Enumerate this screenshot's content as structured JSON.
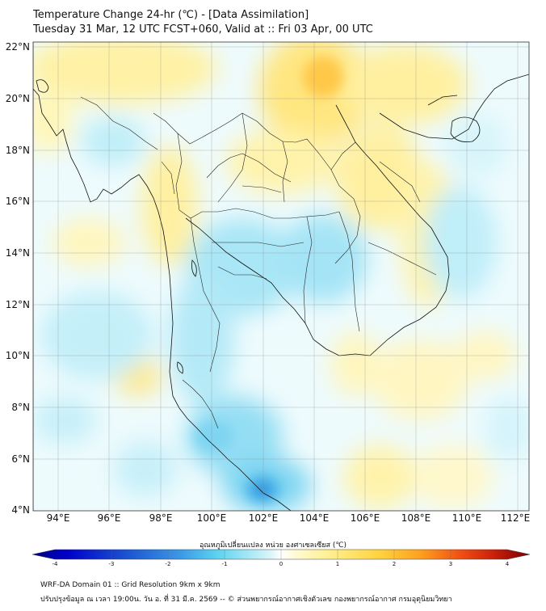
{
  "title": {
    "line1": "Temperature Change 24-hr (℃) - [Data Assimilation]",
    "line2": "Tuesday 31 Mar, 12 UTC FCST+060, Valid at :: Fri 03 Apr, 00 UTC"
  },
  "map": {
    "lat_labels": [
      "22°N",
      "20°N",
      "18°N",
      "16°N",
      "14°N",
      "12°N",
      "10°N",
      "8°N",
      "6°N",
      "4°N"
    ],
    "lon_labels": [
      "94°E",
      "96°E",
      "98°E",
      "100°E",
      "102°E",
      "104°E",
      "106°E",
      "108°E",
      "110°E",
      "112°E"
    ],
    "lat_range": [
      4,
      22
    ],
    "lon_range": [
      93,
      112.5
    ]
  },
  "colorbar": {
    "title": "อุณหภูมิเปลี่ยนแปลง หน่วย องศาเซลเซียส (℃)",
    "ticks": [
      "-4",
      "-3",
      "-2",
      "-1",
      "0",
      "1",
      "2",
      "3",
      "4"
    ],
    "range": [
      -4,
      4
    ],
    "colors": [
      "#000080",
      "#0000c8",
      "#1e5ad2",
      "#3c9be6",
      "#5ad2f0",
      "#a0e6f5",
      "#dcf5fa",
      "#ffffff",
      "#fffad2",
      "#ffef8c",
      "#ffd23c",
      "#ffa01e",
      "#f05014",
      "#c81e0a",
      "#780000"
    ]
  },
  "footer": {
    "line1": "WRF-DA Domain 01 :: Grid Resolution 9km x 9km",
    "line2": "ปรับปรุงข้อมูล ณ เวลา 19:00น. วัน อ. ที่ 31 มี.ค. 2569 -- © ส่วนพยากรณ์อากาศเชิงตัวเลข กองพยากรณ์อากาศ กรมอุตุนิยมวิทยา"
  }
}
